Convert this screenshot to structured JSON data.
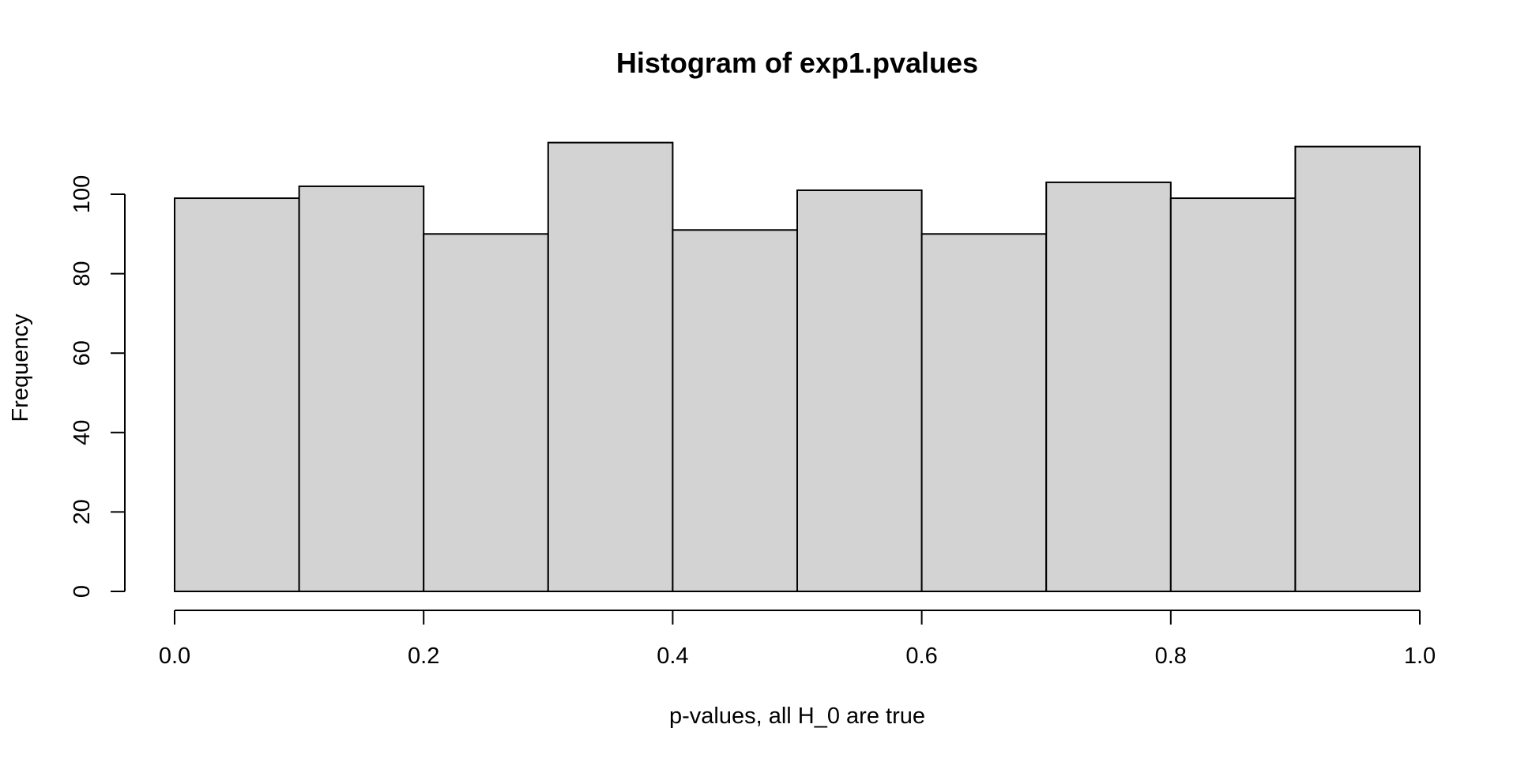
{
  "chart_data": {
    "type": "bar",
    "title": "Histogram of exp1.pvalues",
    "xlabel": "p-values, all H_0 are true",
    "ylabel": "Frequency",
    "bins": [
      {
        "from": 0.0,
        "to": 0.1,
        "count": 99
      },
      {
        "from": 0.1,
        "to": 0.2,
        "count": 102
      },
      {
        "from": 0.2,
        "to": 0.3,
        "count": 90
      },
      {
        "from": 0.3,
        "to": 0.4,
        "count": 113
      },
      {
        "from": 0.4,
        "to": 0.5,
        "count": 91
      },
      {
        "from": 0.5,
        "to": 0.6,
        "count": 101
      },
      {
        "from": 0.6,
        "to": 0.7,
        "count": 90
      },
      {
        "from": 0.7,
        "to": 0.8,
        "count": 103
      },
      {
        "from": 0.8,
        "to": 0.9,
        "count": 99
      },
      {
        "from": 0.9,
        "to": 1.0,
        "count": 112
      }
    ],
    "xlim": [
      0,
      1
    ],
    "ylim": [
      0,
      113
    ],
    "x_ticks": [
      0.0,
      0.2,
      0.4,
      0.6,
      0.8,
      1.0
    ],
    "x_tick_labels": [
      "0.0",
      "0.2",
      "0.4",
      "0.6",
      "0.8",
      "1.0"
    ],
    "y_ticks": [
      0,
      20,
      40,
      60,
      80,
      100
    ],
    "y_tick_labels": [
      "0",
      "20",
      "40",
      "60",
      "80",
      "100"
    ],
    "bar_color": "#d3d3d3",
    "edge_color": "#000000",
    "grid": false,
    "legend": "none"
  }
}
